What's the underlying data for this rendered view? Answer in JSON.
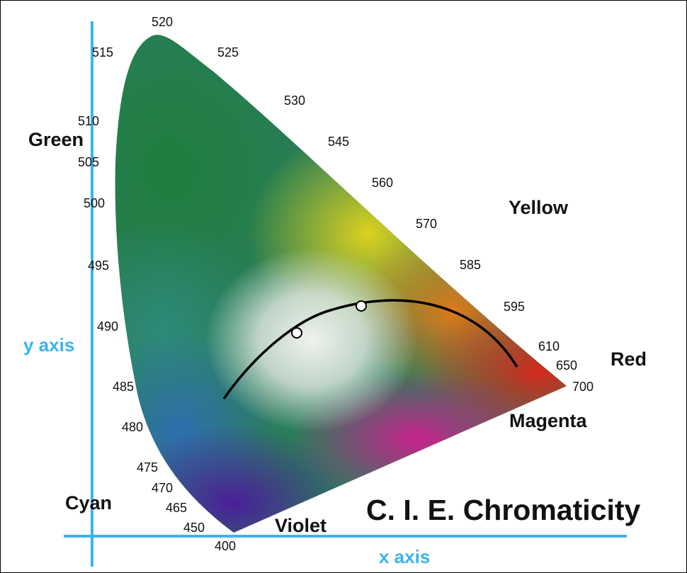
{
  "title": "C. I. E. Chromaticity",
  "axes": {
    "x_label": "x axis",
    "y_label": "y axis"
  },
  "regions": {
    "green": "Green",
    "yellow": "Yellow",
    "red": "Red",
    "magenta": "Magenta",
    "violet": "Violet",
    "cyan": "Cyan"
  },
  "wavelengths": {
    "w520": "520",
    "w515": "515",
    "w525": "525",
    "w530": "530",
    "w510": "510",
    "w545": "545",
    "w505": "505",
    "w560": "560",
    "w500": "500",
    "w570": "570",
    "w495": "495",
    "w585": "585",
    "w595": "595",
    "w490": "490",
    "w610": "610",
    "w650": "650",
    "w700": "700",
    "w485": "485",
    "w480": "480",
    "w475": "475",
    "w470": "470",
    "w465": "465",
    "w450": "450",
    "w400": "400"
  },
  "colors": {
    "axis_line": "#3ab4f0",
    "green": "#1f7e3e",
    "yellow": "#dcd11e",
    "red": "#d42a1c",
    "magenta": "#c8228e",
    "violet": "#4a1f9a",
    "cyan": "#2e6fb0",
    "white_point": "#e9ece6"
  },
  "markers": [
    "planckian-locus",
    "white-point-1",
    "white-point-2"
  ]
}
